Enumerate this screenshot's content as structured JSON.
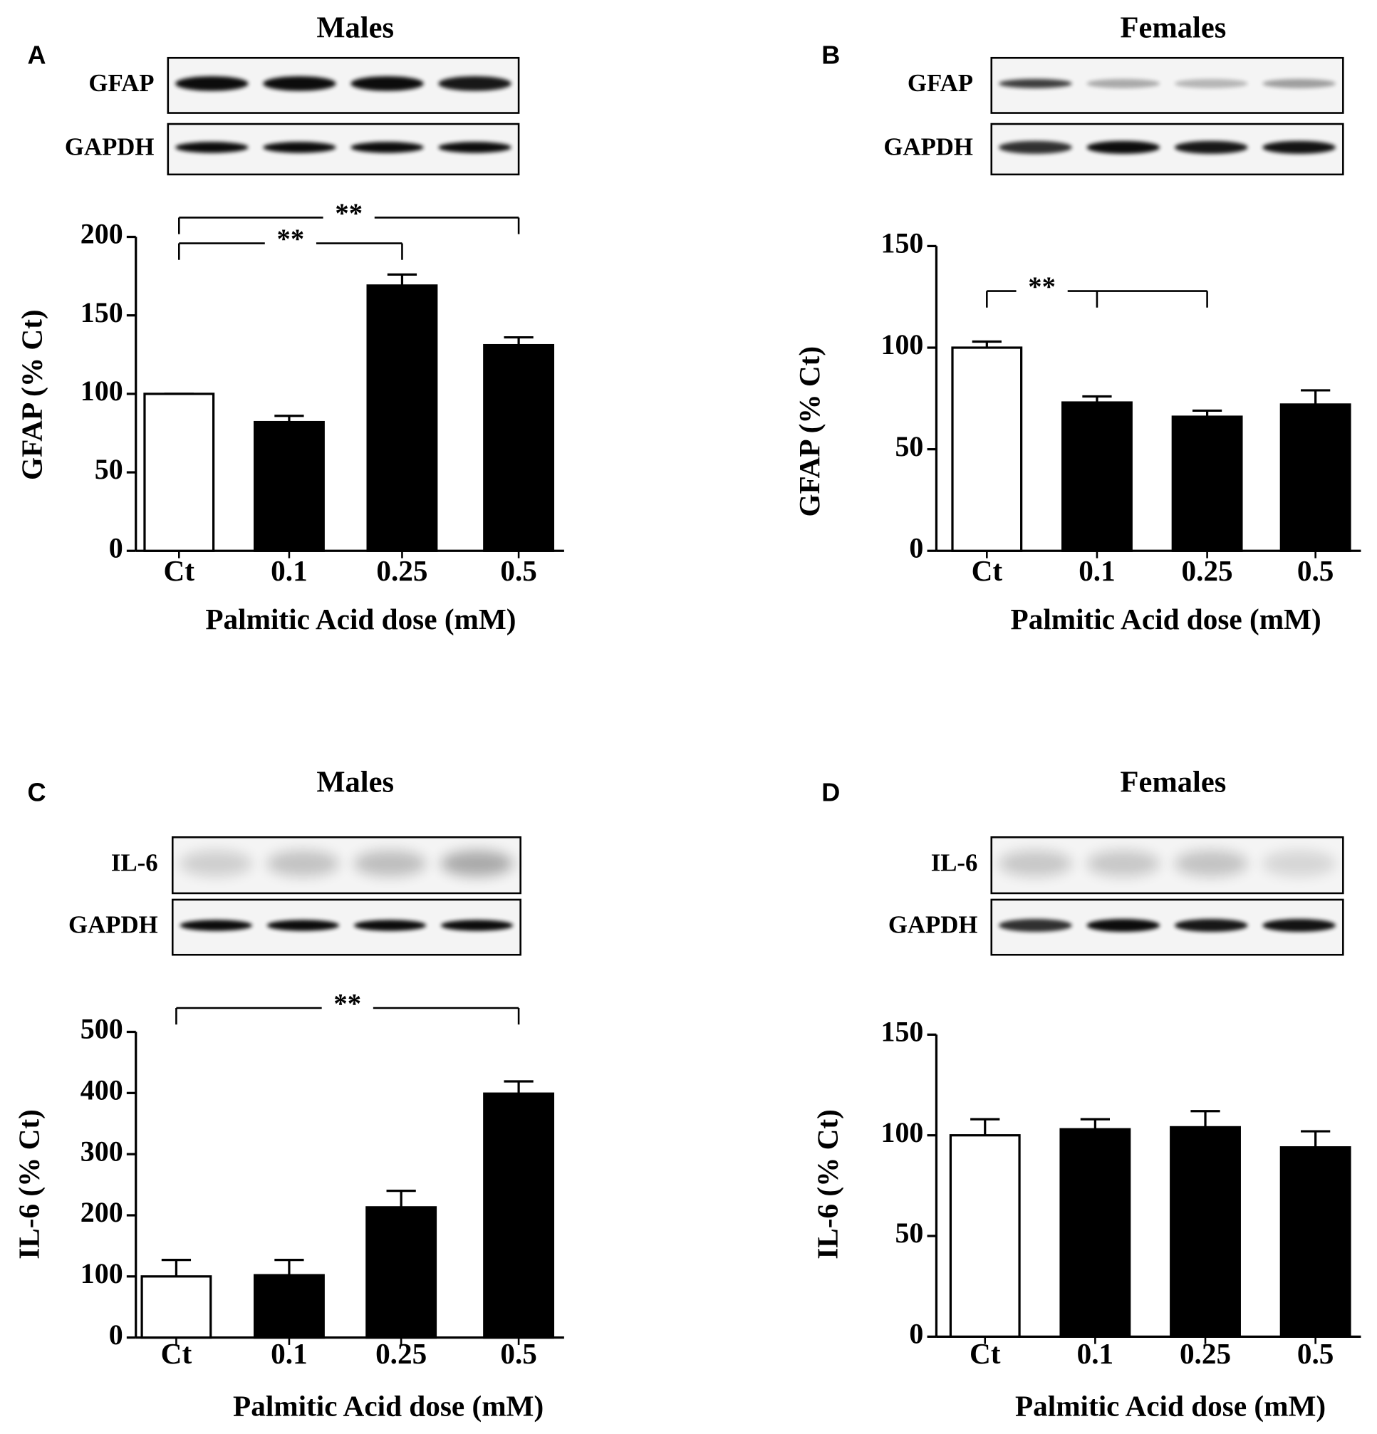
{
  "chart_data": [
    {
      "type": "bar",
      "panel": "A",
      "title": "Males",
      "blots": [
        "GFAP",
        "GAPDH"
      ],
      "categories": [
        "Ct",
        "0.1",
        "0.25",
        "0.5"
      ],
      "values": [
        100,
        82,
        169,
        131
      ],
      "errors": [
        0,
        4,
        7,
        5
      ],
      "colors": [
        "#ffffff",
        "#000000",
        "#000000",
        "#000000"
      ],
      "ylabel": "GFAP (% Ct)",
      "xlabel": "Palmitic Acid dose (mM)",
      "ylim": [
        0,
        200
      ],
      "yticks": [
        0,
        50,
        100,
        150,
        200
      ],
      "annotations": [
        {
          "text": "**",
          "between": [
            "Ct",
            "0.25"
          ]
        },
        {
          "text": "**",
          "between": [
            "Ct",
            "0.5"
          ]
        }
      ]
    },
    {
      "type": "bar",
      "panel": "B",
      "title": "Females",
      "blots": [
        "GFAP",
        "GAPDH"
      ],
      "categories": [
        "Ct",
        "0.1",
        "0.25",
        "0.5"
      ],
      "values": [
        100,
        73,
        66,
        72
      ],
      "errors": [
        3,
        3,
        3,
        7
      ],
      "colors": [
        "#ffffff",
        "#000000",
        "#000000",
        "#000000"
      ],
      "ylabel": "GFAP (% Ct)",
      "xlabel": "Palmitic Acid dose (mM)",
      "ylim": [
        0,
        150
      ],
      "yticks": [
        0,
        50,
        100,
        150
      ],
      "annotations": [
        {
          "text": "**",
          "between": [
            "Ct",
            "0.1",
            "0.25"
          ]
        }
      ]
    },
    {
      "type": "bar",
      "panel": "C",
      "title": "Males",
      "blots": [
        "IL-6",
        "GAPDH"
      ],
      "categories": [
        "Ct",
        "0.1",
        "0.25",
        "0.5"
      ],
      "values": [
        100,
        102,
        213,
        399
      ],
      "errors": [
        27,
        25,
        27,
        20
      ],
      "colors": [
        "#ffffff",
        "#000000",
        "#000000",
        "#000000"
      ],
      "ylabel": "IL-6 (% Ct)",
      "xlabel": "Palmitic Acid dose (mM)",
      "ylim": [
        0,
        500
      ],
      "yticks": [
        0,
        100,
        200,
        300,
        400,
        500
      ],
      "annotations": [
        {
          "text": "**",
          "between": [
            "Ct",
            "0.5"
          ]
        }
      ]
    },
    {
      "type": "bar",
      "panel": "D",
      "title": "Females",
      "blots": [
        "IL-6",
        "GAPDH"
      ],
      "categories": [
        "Ct",
        "0.1",
        "0.25",
        "0.5"
      ],
      "values": [
        100,
        103,
        104,
        94
      ],
      "errors": [
        8,
        5,
        8,
        8
      ],
      "colors": [
        "#ffffff",
        "#000000",
        "#000000",
        "#000000"
      ],
      "ylabel": "IL-6 (% Ct)",
      "xlabel": "Palmitic Acid dose (mM)",
      "ylim": [
        0,
        150
      ],
      "yticks": [
        0,
        50,
        100,
        150
      ],
      "annotations": []
    }
  ]
}
